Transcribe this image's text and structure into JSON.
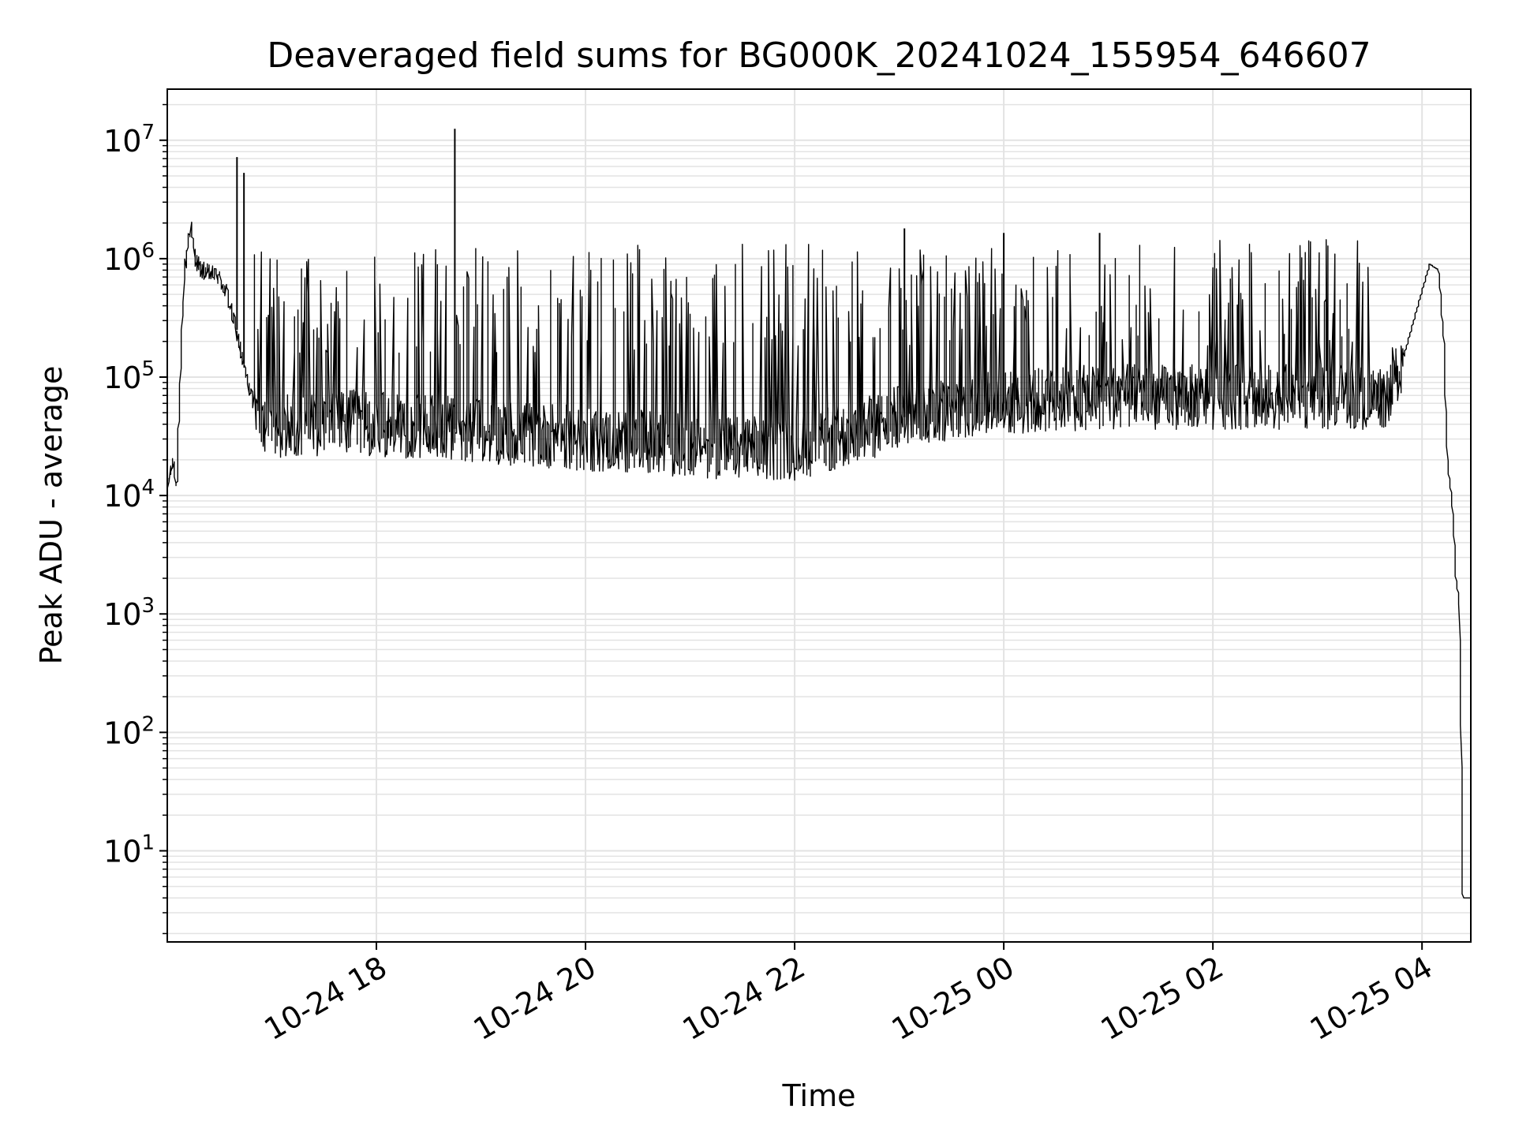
{
  "chart_data": {
    "type": "line",
    "title": "Deaveraged field sums for BG000K_20241024_155954_646607",
    "xlabel": "Time",
    "ylabel": "Peak ADU - average",
    "yscale": "log",
    "grid": true,
    "line_color": "#000000",
    "grid_color": "#e3e3e3",
    "xlim": [
      "2024-10-24 16:00",
      "2024-10-25 04:28"
    ],
    "ylim": [
      1.7,
      27000000
    ],
    "x_ticks": [
      {
        "value": "2024-10-24 18:00",
        "label": "10-24 18"
      },
      {
        "value": "2024-10-24 20:00",
        "label": "10-24 20"
      },
      {
        "value": "2024-10-24 22:00",
        "label": "10-24 22"
      },
      {
        "value": "2024-10-25 00:00",
        "label": "10-25 00"
      },
      {
        "value": "2024-10-25 02:00",
        "label": "10-25 02"
      },
      {
        "value": "2024-10-25 04:00",
        "label": "10-25 04"
      }
    ],
    "y_ticks": [
      {
        "value": 10,
        "base": "10",
        "exp": "1"
      },
      {
        "value": 100,
        "base": "10",
        "exp": "2"
      },
      {
        "value": 1000,
        "base": "10",
        "exp": "3"
      },
      {
        "value": 10000,
        "base": "10",
        "exp": "4"
      },
      {
        "value": 100000,
        "base": "10",
        "exp": "5"
      },
      {
        "value": 1000000,
        "base": "10",
        "exp": "6"
      },
      {
        "value": 10000000,
        "base": "10",
        "exp": "7"
      }
    ],
    "series": [
      {
        "x": [
          "2024-10-24 16:00",
          "2024-10-24 16:02",
          "2024-10-24 16:04",
          "2024-10-24 16:06",
          "2024-10-24 16:08",
          "2024-10-24 16:10",
          "2024-10-24 16:12",
          "2024-10-24 16:14",
          "2024-10-24 16:16",
          "2024-10-24 16:18",
          "2024-10-24 16:20",
          "2024-10-24 16:25",
          "2024-10-24 16:30",
          "2024-10-24 16:35",
          "2024-10-24 16:40",
          "2024-10-24 16:45",
          "2024-10-24 16:50",
          "2024-10-24 16:55",
          "2024-10-24 17:00",
          "2024-10-24 17:05",
          "2024-10-24 17:10",
          "2024-10-24 17:20",
          "2024-10-24 17:30",
          "2024-10-24 17:45",
          "2024-10-24 18:00",
          "2024-10-24 18:30",
          "2024-10-24 19:00",
          "2024-10-24 19:30",
          "2024-10-24 20:00",
          "2024-10-24 20:30",
          "2024-10-24 21:00",
          "2024-10-24 21:30",
          "2024-10-24 22:00",
          "2024-10-24 22:30",
          "2024-10-24 23:00",
          "2024-10-24 23:30",
          "2024-10-25 00:00",
          "2024-10-25 00:30",
          "2024-10-25 01:00",
          "2024-10-25 01:30",
          "2024-10-25 02:00",
          "2024-10-25 02:30",
          "2024-10-25 03:00",
          "2024-10-25 03:30",
          "2024-10-25 03:40",
          "2024-10-25 03:50",
          "2024-10-25 04:00",
          "2024-10-25 04:05",
          "2024-10-25 04:10",
          "2024-10-25 04:13",
          "2024-10-25 04:15",
          "2024-10-25 04:18",
          "2024-10-25 04:20",
          "2024-10-25 04:22",
          "2024-10-25 04:24",
          "2024-10-25 04:25",
          "2024-10-25 04:28"
        ],
        "y": [
          10000,
          15000,
          20000,
          12000,
          100000,
          600000,
          1300000,
          1900000,
          1100000,
          900000,
          800000,
          750000,
          700000,
          500000,
          250000,
          110000,
          60000,
          45000,
          40000,
          38000,
          40000,
          42000,
          40000,
          42000,
          40000,
          38000,
          35000,
          33000,
          30000,
          28000,
          27000,
          25000,
          25000,
          32000,
          45000,
          55000,
          60000,
          65000,
          68000,
          68000,
          68000,
          68000,
          68000,
          68000,
          70000,
          150000,
          500000,
          900000,
          800000,
          200000,
          20000,
          8000,
          2000,
          1200,
          4,
          4,
          4
        ]
      }
    ],
    "spikes": [
      {
        "x": "2024-10-24 16:40",
        "y": 7200000
      },
      {
        "x": "2024-10-24 16:44",
        "y": 5300000
      },
      {
        "x": "2024-10-24 18:45",
        "y": 12500000
      },
      {
        "x": "2024-10-24 23:03",
        "y": 1800000
      },
      {
        "x": "2024-10-25 00:00",
        "y": 1650000
      },
      {
        "x": "2024-10-25 00:55",
        "y": 1650000
      }
    ],
    "spike_band": {
      "from": "2024-10-24 16:40",
      "to": "2024-10-25 03:30",
      "early_peak": 1200000,
      "late_peak": 1500000
    }
  }
}
